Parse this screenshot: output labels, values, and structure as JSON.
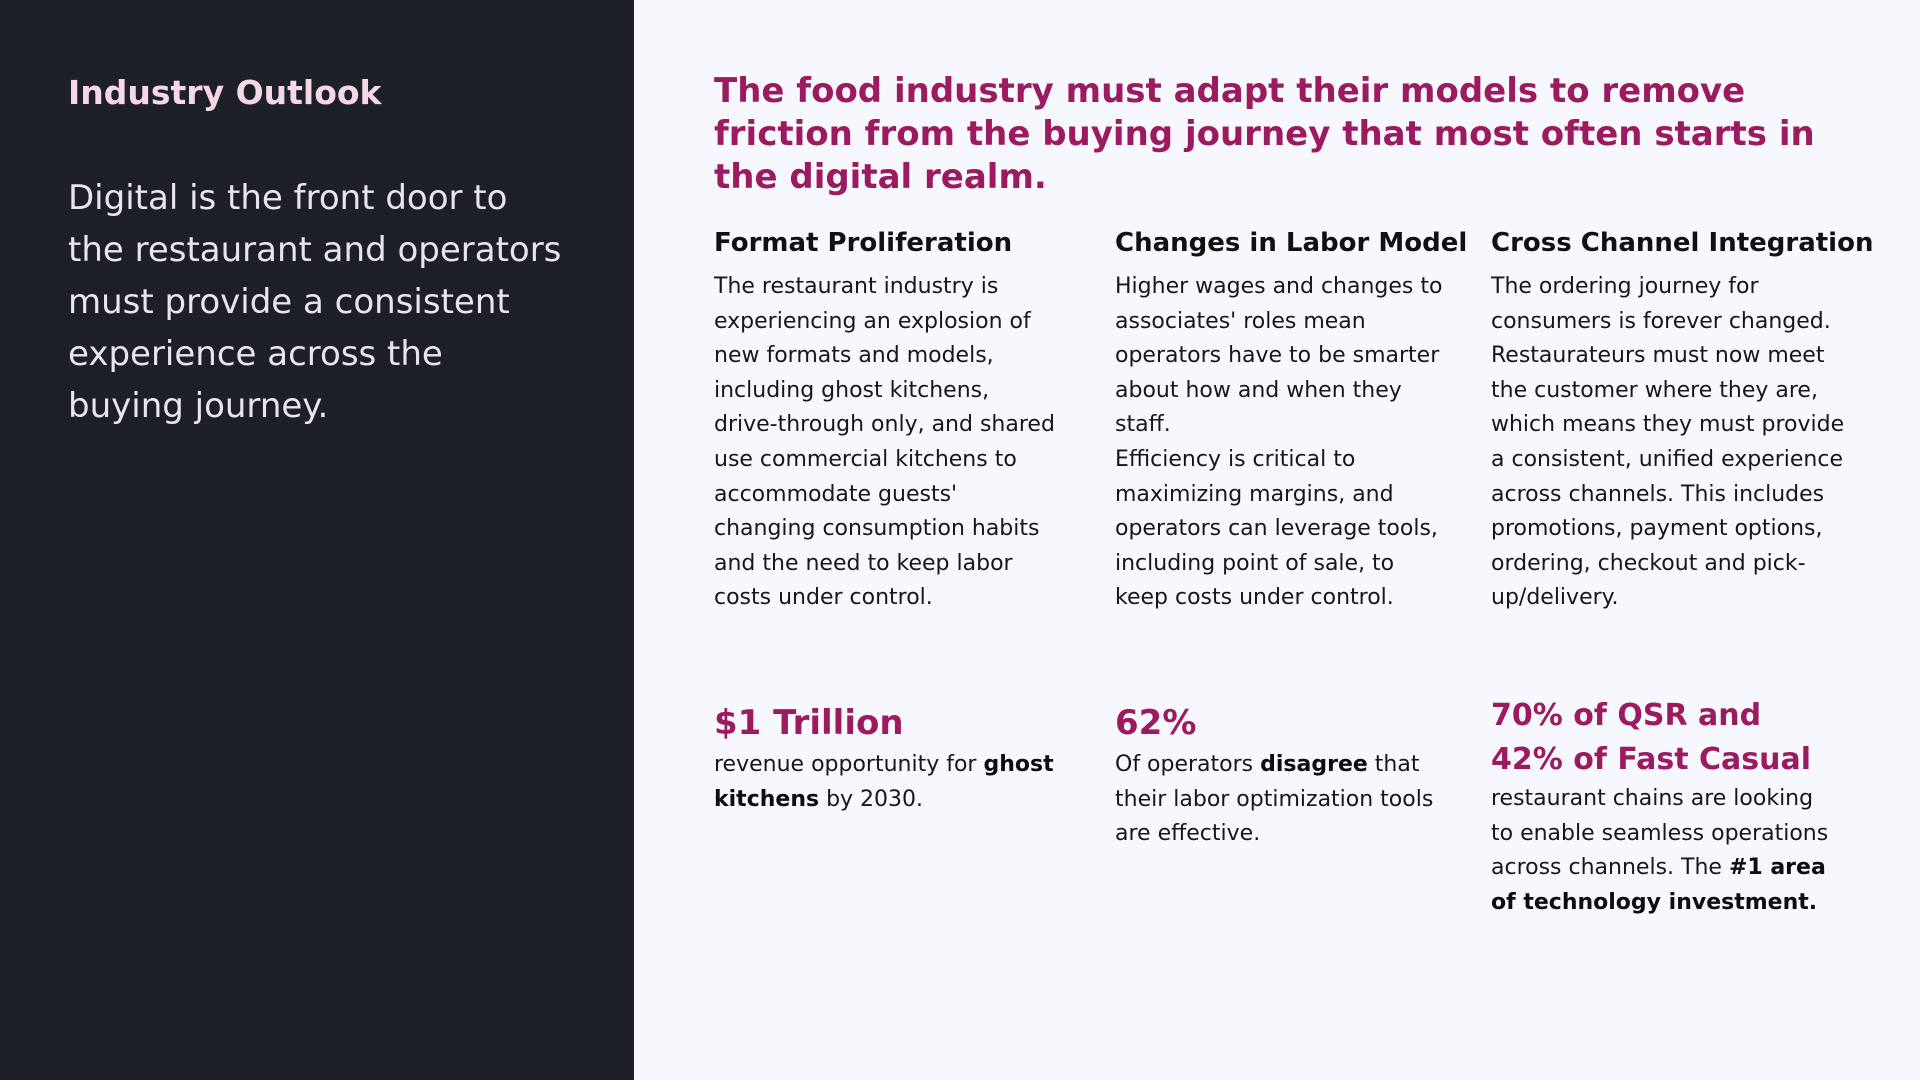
{
  "sidebar": {
    "section_label": "Industry Outlook",
    "statement": "Digital is the front door to the restaurant and operators must provide a consistent experience across the buying journey."
  },
  "main": {
    "headline": "The food industry must adapt their models to remove friction from the buying journey that most often starts in the digital realm.",
    "columns": [
      {
        "title": "Format Proliferation",
        "paragraphs": [
          "The restaurant industry is experiencing an explosion of new formats and models, including ghost kitchens, drive-through only, and shared use commercial kitchens to accommodate guests' changing consumption habits and the need to keep labor costs under control."
        ],
        "stat": {
          "value": "$1 Trillion",
          "desc_1": "revenue opportunity for ",
          "desc_bold": "ghost kitchens",
          "desc_2": " by 2030."
        }
      },
      {
        "title": "Changes in Labor Model",
        "paragraphs": [
          "Higher wages and changes to associates' roles mean operators have to be smarter about how and when they staff.",
          "Efficiency is critical to maximizing margins, and operators can leverage tools, including point of sale, to keep costs under control."
        ],
        "stat": {
          "value": "62%",
          "desc_1": "Of operators ",
          "desc_bold": "disagree",
          "desc_2": " that their labor optimization tools are effective."
        }
      },
      {
        "title": "Cross Channel Integration",
        "paragraphs": [
          "The ordering journey for consumers is forever changed. Restaurateurs must now meet the customer where they are, which means they must provide a consistent, unified experience across channels. This includes promotions, payment options, ordering, checkout and pick-up/delivery."
        ],
        "stat": {
          "value": "70% of QSR and 42% of Fast Casual",
          "desc_1": "restaurant chains are looking to enable seamless operations across channels. The ",
          "desc_bold": "#1 area of technology investment.",
          "desc_2": ""
        }
      }
    ]
  },
  "colors": {
    "sidebar_bg": "#1e2028",
    "accent": "#9c1a5f",
    "label": "#f6d7e6",
    "page_bg": "#f7f8fd"
  }
}
